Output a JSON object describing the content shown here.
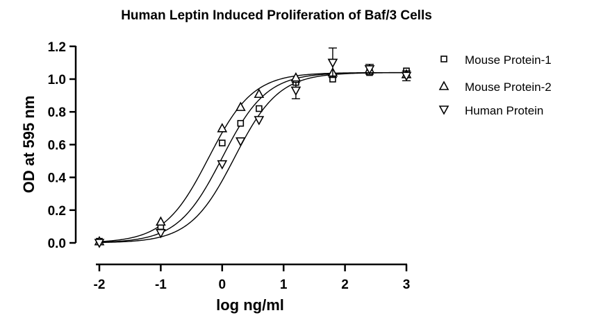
{
  "chart_data": {
    "type": "scatter",
    "title": "Human Leptin Induced Proliferation of Baf/3 Cells",
    "xlabel": "log ng/ml",
    "ylabel": "OD at 595 nm",
    "xlim": [
      -2,
      3
    ],
    "ylim": [
      0.0,
      1.2
    ],
    "xticks": [
      "-2",
      "-1",
      "0",
      "1",
      "2",
      "3"
    ],
    "yticks": [
      "0.0",
      "0.2",
      "0.4",
      "0.6",
      "0.8",
      "1.0",
      "1.2"
    ],
    "legend_position": "right",
    "grid": false,
    "series": [
      {
        "name": "Mouse Protein-1",
        "marker": "square",
        "x": [
          -2,
          -1,
          0,
          0.3,
          0.6,
          1.2,
          1.8,
          2.4,
          3.0
        ],
        "y": [
          0.01,
          0.1,
          0.61,
          0.73,
          0.82,
          0.98,
          1.0,
          1.04,
          1.05
        ],
        "curve_ec50": 0.0,
        "curve_hill": 1.2,
        "curve_bottom": 0.0,
        "curve_top": 1.04
      },
      {
        "name": "Mouse Protein-2",
        "marker": "triangle-up",
        "x": [
          -2,
          -1,
          0,
          0.3,
          0.6,
          1.2,
          1.8,
          2.4,
          3.0
        ],
        "y": [
          0.01,
          0.13,
          0.7,
          0.83,
          0.91,
          1.01,
          1.04,
          1.06,
          1.03
        ],
        "curve_ec50": -0.22,
        "curve_hill": 1.2,
        "curve_bottom": 0.0,
        "curve_top": 1.04
      },
      {
        "name": "Human Protein",
        "marker": "triangle-down",
        "x": [
          -2,
          -1,
          0,
          0.3,
          0.6,
          1.2,
          1.8,
          2.4,
          3.0
        ],
        "y": [
          0.0,
          0.06,
          0.48,
          0.62,
          0.75,
          0.93,
          1.1,
          1.06,
          1.02
        ],
        "yerr": [
          0,
          0,
          0,
          0,
          0,
          0.05,
          0.09,
          0.03,
          0.03
        ],
        "curve_ec50": 0.2,
        "curve_hill": 1.2,
        "curve_bottom": 0.0,
        "curve_top": 1.04
      }
    ]
  }
}
